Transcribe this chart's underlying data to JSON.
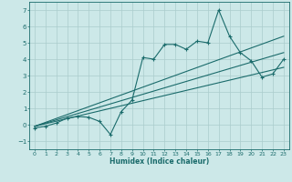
{
  "xlabel": "Humidex (Indice chaleur)",
  "background_color": "#cce8e8",
  "grid_color": "#aacccc",
  "line_color": "#1a6b6b",
  "xlim": [
    -0.5,
    23.5
  ],
  "ylim": [
    -1.5,
    7.5
  ],
  "xticks": [
    0,
    1,
    2,
    3,
    4,
    5,
    6,
    7,
    8,
    9,
    10,
    11,
    12,
    13,
    14,
    15,
    16,
    17,
    18,
    19,
    20,
    21,
    22,
    23
  ],
  "yticks": [
    -1,
    0,
    1,
    2,
    3,
    4,
    5,
    6,
    7
  ],
  "main_series_x": [
    0,
    1,
    2,
    3,
    4,
    5,
    6,
    7,
    8,
    9,
    10,
    11,
    12,
    13,
    14,
    15,
    16,
    17,
    18,
    19,
    20,
    21,
    22,
    23
  ],
  "main_series_y": [
    -0.2,
    -0.1,
    0.1,
    0.4,
    0.5,
    0.45,
    0.2,
    -0.6,
    0.8,
    1.5,
    4.1,
    4.0,
    4.9,
    4.9,
    4.6,
    5.1,
    5.0,
    7.0,
    5.4,
    4.4,
    3.9,
    2.9,
    3.1,
    4.0
  ],
  "line1_x": [
    0,
    23
  ],
  "line1_y": [
    -0.1,
    5.4
  ],
  "line2_x": [
    0,
    23
  ],
  "line2_y": [
    -0.1,
    4.4
  ],
  "line3_x": [
    0,
    23
  ],
  "line3_y": [
    -0.1,
    3.5
  ]
}
